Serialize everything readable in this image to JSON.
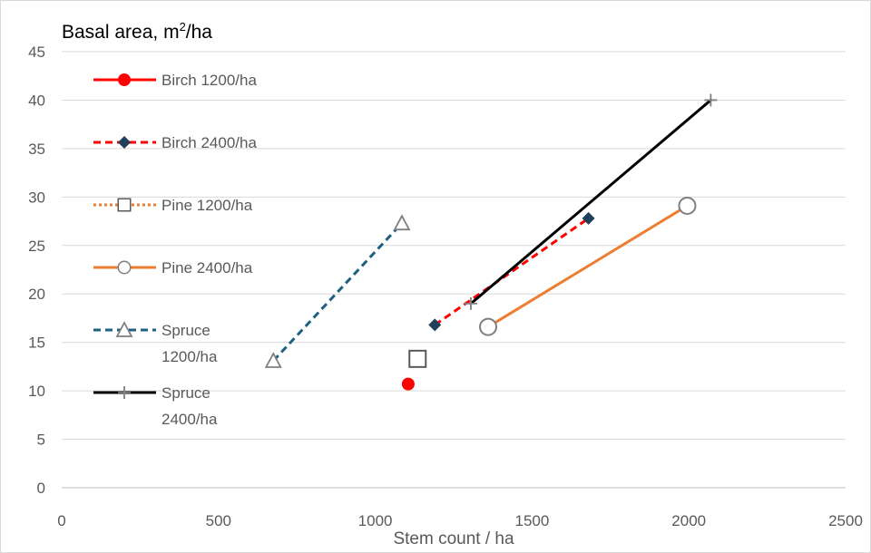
{
  "chart_data": {
    "type": "scatter",
    "title": "",
    "ylabel": "Basal area, m",
    "ylabel_sup": "2",
    "ylabel_suffix": "/ha",
    "xlabel": "Stem count / ha",
    "xlim": [
      0,
      2500
    ],
    "ylim": [
      0,
      45
    ],
    "xticks": [
      0,
      500,
      1000,
      1500,
      2000,
      2500
    ],
    "yticks": [
      0,
      5,
      10,
      15,
      20,
      25,
      30,
      35,
      40,
      45
    ],
    "grid": "horizontal",
    "legend_position": "left",
    "series": [
      {
        "name": "Birch 1200/ha",
        "legend_lines": [
          "Birch 1200/ha"
        ],
        "color": "#ff0000",
        "line": "solid",
        "marker": "filled-circle",
        "points": [
          [
            1105,
            10.7
          ]
        ]
      },
      {
        "name": "Birch 2400/ha",
        "legend_lines": [
          "Birch 2400/ha"
        ],
        "color": "#ff0000",
        "marker_color": "#1f3f5b",
        "line": "dashed",
        "marker": "filled-diamond",
        "points": [
          [
            1190,
            16.8
          ],
          [
            1680,
            27.8
          ]
        ]
      },
      {
        "name": "Pine 1200/ha",
        "legend_lines": [
          "Pine 1200/ha"
        ],
        "color": "#ed7d31",
        "marker_color": "#595959",
        "line": "dotted",
        "marker": "open-square",
        "points": [
          [
            1135,
            13.3
          ]
        ]
      },
      {
        "name": "Pine 2400/ha",
        "legend_lines": [
          "Pine 2400/ha"
        ],
        "color": "#ed7d31",
        "marker_color": "#7f7f7f",
        "line": "solid",
        "marker": "open-circle",
        "points": [
          [
            1360,
            16.6
          ],
          [
            1995,
            29.1
          ]
        ]
      },
      {
        "name": "Spruce 1200/ha",
        "legend_lines": [
          "Spruce",
          "1200/ha"
        ],
        "color": "#1f5f7f",
        "marker_color": "#7f7f7f",
        "line": "dashed",
        "marker": "open-triangle",
        "points": [
          [
            675,
            13.1
          ],
          [
            1085,
            27.3
          ]
        ]
      },
      {
        "name": "Spruce 2400/ha",
        "legend_lines": [
          "Spruce",
          "2400/ha"
        ],
        "color": "#000000",
        "marker_color": "#7f7f7f",
        "line": "solid",
        "marker": "plus",
        "points": [
          [
            1305,
            19.0
          ],
          [
            2070,
            40.0
          ]
        ]
      }
    ]
  }
}
